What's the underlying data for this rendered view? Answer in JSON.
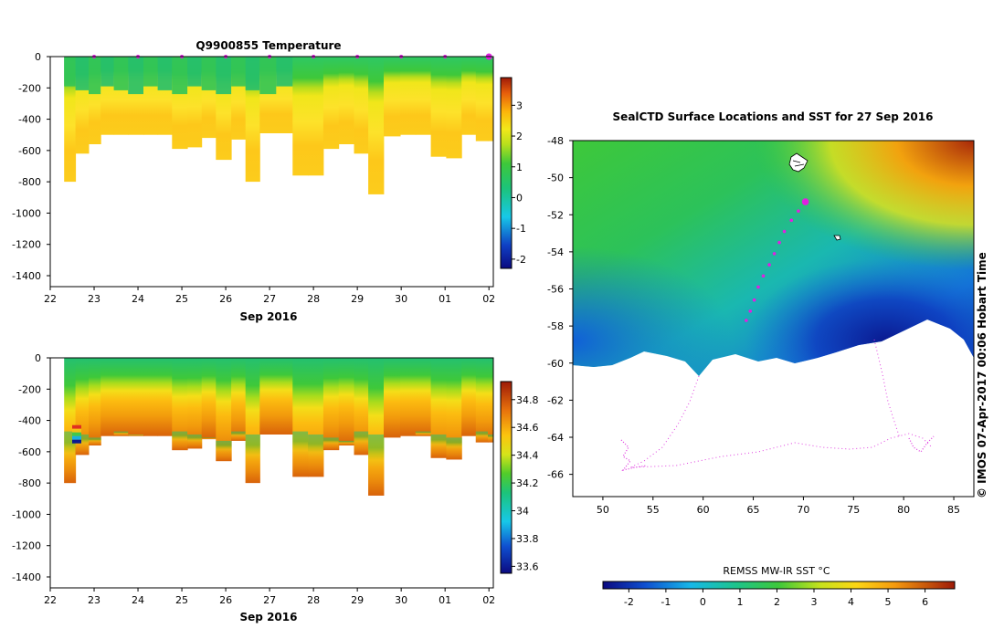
{
  "chart_data": [
    {
      "type": "heatmap",
      "title": "Q9900855  Temperature",
      "xlabel": "Sep 2016",
      "x_tick_labels": [
        "22",
        "23",
        "24",
        "25",
        "26",
        "27",
        "28",
        "29",
        "30",
        "01",
        "02"
      ],
      "x_range": [
        22,
        32.1
      ],
      "ylim": [
        -1470,
        0
      ],
      "y_ticks": [
        0,
        -200,
        -400,
        -600,
        -800,
        -1000,
        -1200,
        -1400
      ],
      "colorbar": {
        "min": -2.3,
        "max": 3.9,
        "ticks": [
          3,
          2,
          1,
          0,
          -1,
          -2
        ]
      },
      "profile_times": [
        22.4,
        22.75,
        23.0,
        23.3,
        23.6,
        23.95,
        24.3,
        24.6,
        24.95,
        25.3,
        25.6,
        25.95,
        26.3,
        26.6,
        26.95,
        27.35,
        27.7,
        28.05,
        28.4,
        28.75,
        29.1,
        29.4,
        29.8,
        30.15,
        30.5,
        30.85,
        31.2,
        31.55,
        31.85,
        32.1
      ],
      "profile_depths": [
        800,
        620,
        560,
        500,
        500,
        500,
        500,
        500,
        590,
        580,
        520,
        660,
        530,
        800,
        490,
        490,
        760,
        760,
        590,
        560,
        620,
        880,
        510,
        500,
        500,
        640,
        650,
        500,
        540,
        540
      ],
      "surface_marker_times": [
        23,
        24,
        25,
        26,
        27,
        28,
        29,
        30,
        31,
        32
      ],
      "values_desc": "warm-layer temperatures: surface ~0.3-1.2 C, subsurface max ~1.5-2.2 C near 300-500 m"
    },
    {
      "type": "heatmap",
      "title": "",
      "xlabel": "Sep 2016",
      "x_tick_labels": [
        "22",
        "23",
        "24",
        "25",
        "26",
        "27",
        "28",
        "29",
        "30",
        "01",
        "02"
      ],
      "x_range": [
        22,
        32.1
      ],
      "ylim": [
        -1470,
        0
      ],
      "y_ticks": [
        0,
        -200,
        -400,
        -600,
        -800,
        -1000,
        -1200,
        -1400
      ],
      "colorbar": {
        "min": 33.55,
        "max": 34.93,
        "ticks": [
          "34.8",
          "34.6",
          "34.4",
          "34.2",
          "34",
          "33.8",
          "33.6"
        ]
      },
      "values_desc": "salinity ~34.0-34.1 at surface increasing to ~34.6-34.7 at depth"
    },
    {
      "type": "heatmap",
      "title": "SealCTD Surface Locations and SST for 27 Sep 2016",
      "x_tick_labels": [
        "50",
        "55",
        "60",
        "65",
        "70",
        "75",
        "80",
        "85"
      ],
      "x_range": [
        47,
        87
      ],
      "y_tick_labels": [
        "-48",
        "-50",
        "-52",
        "-54",
        "-56",
        "-58",
        "-60",
        "-62",
        "-64",
        "-66"
      ],
      "y_range": [
        -67.2,
        -48
      ],
      "colorbar": {
        "label": "REMSS MW-IR SST °C",
        "min": -2.7,
        "max": 6.8,
        "ticks": [
          "-2",
          "-1",
          "0",
          "1",
          "2",
          "3",
          "4",
          "5",
          "6"
        ]
      },
      "track_points": [
        {
          "lon": 70.2,
          "lat": -51.3
        },
        {
          "lon": 69.5,
          "lat": -51.8
        },
        {
          "lon": 68.8,
          "lat": -52.3
        },
        {
          "lon": 68.1,
          "lat": -52.9
        },
        {
          "lon": 67.6,
          "lat": -53.5
        },
        {
          "lon": 67.1,
          "lat": -54.1
        },
        {
          "lon": 66.6,
          "lat": -54.7
        },
        {
          "lon": 66.0,
          "lat": -55.3
        },
        {
          "lon": 65.5,
          "lat": -55.9
        },
        {
          "lon": 65.1,
          "lat": -56.6
        },
        {
          "lon": 64.7,
          "lat": -57.2
        },
        {
          "lon": 64.3,
          "lat": -57.7
        }
      ],
      "current_position": {
        "lon": 70.2,
        "lat": -51.3
      }
    }
  ],
  "side_label": "© IMOS 07-Apr-2017 00:06 Hobart Time"
}
